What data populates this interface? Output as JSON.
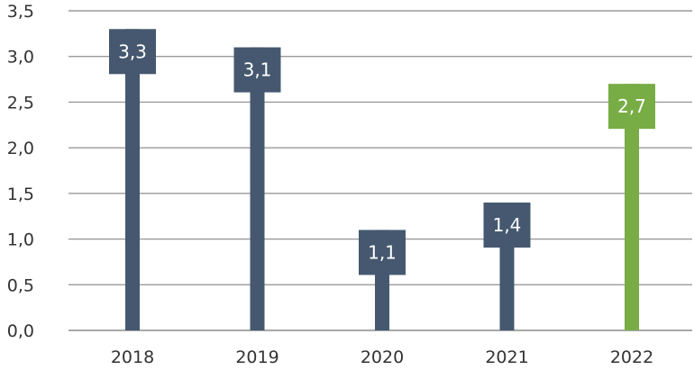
{
  "chart_data": {
    "type": "bar",
    "title": "",
    "xlabel": "",
    "ylabel": "",
    "categories": [
      "2018",
      "2019",
      "2020",
      "2021",
      "2022"
    ],
    "values": [
      3.3,
      3.1,
      1.1,
      1.4,
      2.7
    ],
    "value_labels": [
      "3,3",
      "3,1",
      "1,1",
      "1,4",
      "2,7"
    ],
    "ylim": [
      0,
      3.5
    ],
    "yticks": [
      0,
      0.5,
      1.0,
      1.5,
      2.0,
      2.5,
      3.0,
      3.5
    ],
    "ytick_labels": [
      "0,0",
      "0,5",
      "1,0",
      "1,5",
      "2,0",
      "2,5",
      "3,0",
      "3,5"
    ],
    "grid": true,
    "legend": "none",
    "colors": {
      "default": "#45586f",
      "highlight": "#78ad45",
      "grid": "#9a9a9a",
      "text": "#333333",
      "label_text": "#ffffff"
    },
    "highlight_index": 4
  }
}
